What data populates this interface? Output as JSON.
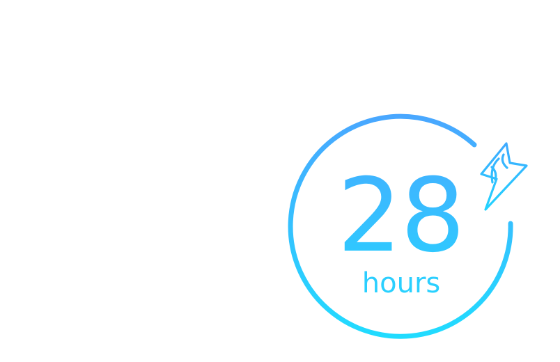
{
  "graphic": {
    "value": "28",
    "unit": "hours",
    "icon": "lightning-bolt-icon",
    "colors": {
      "gradient_top": "#4aa6ff",
      "gradient_bottom": "#20dcff",
      "background": "#ffffff"
    }
  }
}
